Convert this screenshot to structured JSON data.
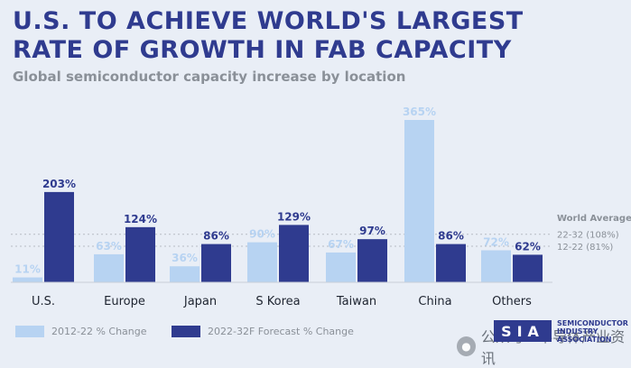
{
  "title_line1": "U.S. TO ACHIEVE WORLD'S LARGEST",
  "title_line2": "RATE OF GROWTH IN FAB CAPACITY",
  "subtitle": "Global semiconductor capacity increase by location",
  "chart_data": {
    "type": "bar",
    "title": "U.S. TO ACHIEVE WORLD'S LARGEST RATE OF GROWTH IN FAB CAPACITY",
    "subtitle": "Global semiconductor capacity increase by location",
    "categories": [
      "U.S.",
      "Europe",
      "Japan",
      "S Korea",
      "Taiwan",
      "China",
      "Others"
    ],
    "series": [
      {
        "name": "2012-22 % Change",
        "values": [
          11,
          63,
          36,
          90,
          67,
          365,
          72
        ],
        "labels": [
          "11%",
          "63%",
          "36%",
          "90%",
          "67%",
          "365%",
          "72%"
        ],
        "color": "#b7d3f2",
        "label_color": "#b7d3f2"
      },
      {
        "name": "2022-32F Forecast % Change",
        "values": [
          203,
          124,
          86,
          129,
          97,
          86,
          62
        ],
        "labels": [
          "203%",
          "124%",
          "86%",
          "129%",
          "97%",
          "86%",
          "62%"
        ],
        "color": "#2f3b8f",
        "label_color": "#2f3b8f"
      }
    ],
    "reference_lines": [
      {
        "label": "22-32 (108%)",
        "value": 108
      },
      {
        "label": "12-22 (81%)",
        "value": 81
      }
    ],
    "reference_title": "World Average",
    "ylim": [
      0,
      365
    ],
    "xlabel": "",
    "ylabel": ""
  },
  "legend": {
    "item1": "2012-22 % Change",
    "item2": "2022-32F Forecast % Change",
    "color1": "#b7d3f2",
    "color2": "#2f3b8f"
  },
  "logo": {
    "abbr": "SIA",
    "line1": "SEMICONDUCTOR",
    "line2": "INDUSTRY",
    "line3": "ASSOCIATION"
  },
  "watermark": "公众号 · 半导体产业资讯"
}
